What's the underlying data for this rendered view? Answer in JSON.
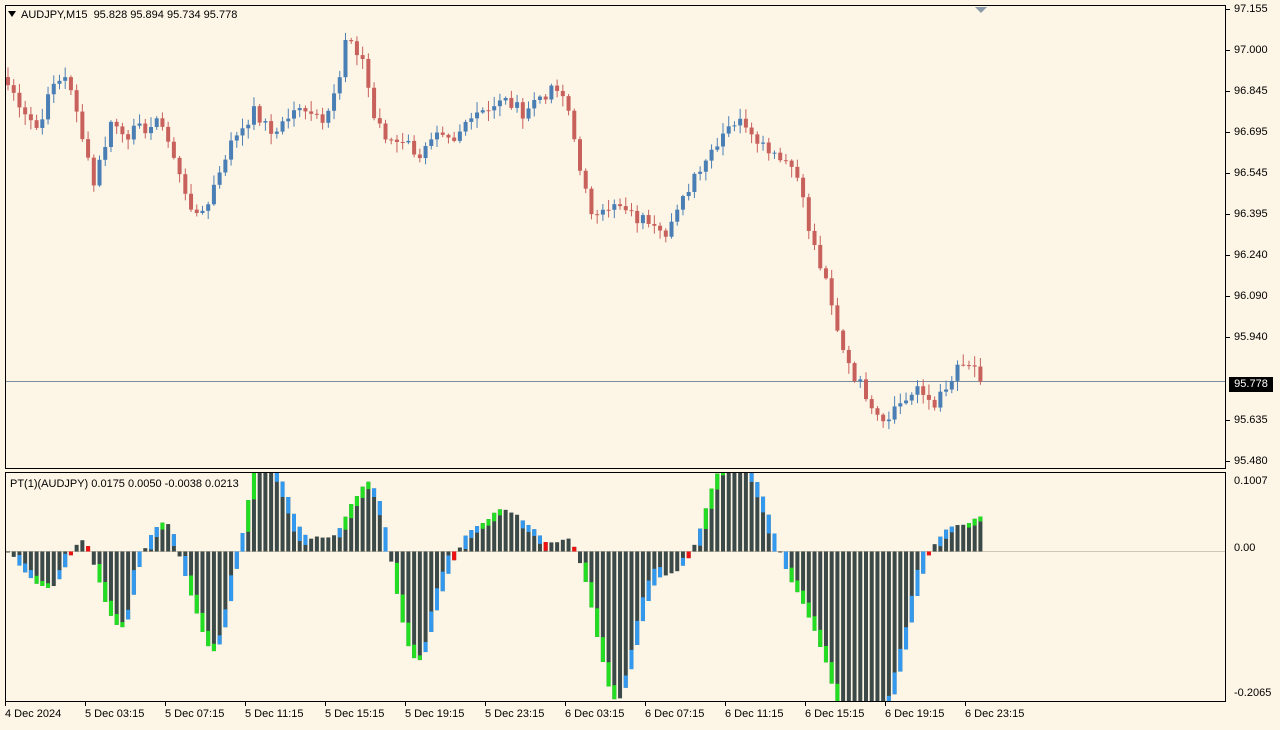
{
  "header": {
    "symbol": "AUDJPY,M15",
    "ohlc": "95.828 95.894 95.734 95.778"
  },
  "indicator": {
    "title": "PT(1)(AUDJPY) 0.0175 0.0050 -0.0038 0.0213"
  },
  "price_axis": [
    "97.155",
    "97.000",
    "96.845",
    "96.695",
    "96.545",
    "96.395",
    "96.240",
    "96.090",
    "95.940",
    "95.635",
    "95.480"
  ],
  "current_price": "95.778",
  "indicator_axis": [
    "0.1007",
    "0.00",
    "-0.2065"
  ],
  "time_axis": [
    "4 Dec 2024",
    "5 Dec 03:15",
    "5 Dec 07:15",
    "5 Dec 11:15",
    "5 Dec 15:15",
    "5 Dec 19:15",
    "5 Dec 23:15",
    "6 Dec 03:15",
    "6 Dec 07:15",
    "6 Dec 11:15",
    "6 Dec 15:15",
    "6 Dec 19:15",
    "6 Dec 23:15"
  ],
  "colors": {
    "bull": "#4a7fb5",
    "bear": "#c8605c",
    "hist_base": "#3b4a48",
    "hist_green": "#22dd22",
    "hist_blue": "#3399ee",
    "hist_red": "#ee1111",
    "price_line": "#7d8ea0"
  },
  "chart_data": {
    "type": "candlestick",
    "symbol": "AUDJPY",
    "timeframe": "M15",
    "ylim": [
      95.46,
      97.17
    ],
    "current_price": 95.778,
    "close_path": [
      [
        0,
        96.88
      ],
      [
        5,
        96.72
      ],
      [
        8,
        96.88
      ],
      [
        10,
        96.92
      ],
      [
        13,
        96.7
      ],
      [
        15,
        96.52
      ],
      [
        18,
        96.74
      ],
      [
        21,
        96.7
      ],
      [
        24,
        96.72
      ],
      [
        27,
        96.74
      ],
      [
        30,
        96.54
      ],
      [
        33,
        96.38
      ],
      [
        35,
        96.45
      ],
      [
        38,
        96.62
      ],
      [
        40,
        96.7
      ],
      [
        43,
        96.78
      ],
      [
        46,
        96.7
      ],
      [
        49,
        96.76
      ],
      [
        52,
        96.8
      ],
      [
        55,
        96.76
      ],
      [
        58,
        96.9
      ],
      [
        59,
        97.04
      ],
      [
        62,
        96.98
      ],
      [
        64,
        96.76
      ],
      [
        66,
        96.68
      ],
      [
        69,
        96.68
      ],
      [
        72,
        96.62
      ],
      [
        75,
        96.68
      ],
      [
        78,
        96.66
      ],
      [
        81,
        96.78
      ],
      [
        84,
        96.8
      ],
      [
        87,
        96.82
      ],
      [
        90,
        96.78
      ],
      [
        93,
        96.84
      ],
      [
        96,
        96.86
      ],
      [
        98,
        96.78
      ],
      [
        100,
        96.58
      ],
      [
        102,
        96.38
      ],
      [
        104,
        96.44
      ],
      [
        107,
        96.42
      ],
      [
        110,
        96.38
      ],
      [
        113,
        96.38
      ],
      [
        115,
        96.34
      ],
      [
        117,
        96.4
      ],
      [
        120,
        96.55
      ],
      [
        123,
        96.64
      ],
      [
        126,
        96.74
      ],
      [
        129,
        96.74
      ],
      [
        132,
        96.66
      ],
      [
        135,
        96.62
      ],
      [
        138,
        96.56
      ],
      [
        140,
        96.34
      ],
      [
        143,
        96.14
      ],
      [
        145,
        95.96
      ],
      [
        148,
        95.8
      ],
      [
        151,
        95.7
      ],
      [
        153,
        95.64
      ],
      [
        156,
        95.7
      ],
      [
        159,
        95.74
      ],
      [
        162,
        95.7
      ],
      [
        164,
        95.74
      ],
      [
        166,
        95.82
      ],
      [
        168,
        95.84
      ],
      [
        170,
        95.78
      ]
    ]
  },
  "indicator_data": {
    "type": "histogram",
    "name": "PT(1)",
    "values": [
      0.0175,
      0.005,
      -0.0038,
      0.0213
    ],
    "ylim": [
      -0.2065,
      0.1007
    ]
  }
}
